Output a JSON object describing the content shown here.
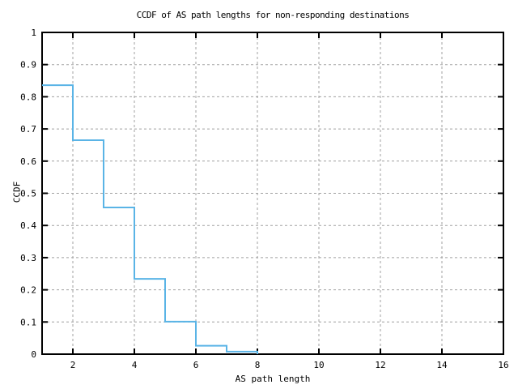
{
  "chart_data": {
    "type": "line",
    "subtype": "step-after-ccdf",
    "title": "CCDF of AS path lengths for non-responding destinations",
    "xlabel": "AS path length",
    "ylabel": "CCDF",
    "xlim": [
      1,
      16
    ],
    "ylim": [
      0,
      1
    ],
    "grid": "dashed-gray-at-ticks",
    "legend": "none",
    "xticks": [
      {
        "value": 2,
        "label": "2"
      },
      {
        "value": 4,
        "label": "4"
      },
      {
        "value": 6,
        "label": "6"
      },
      {
        "value": 8,
        "label": "8"
      },
      {
        "value": 10,
        "label": "10"
      },
      {
        "value": 12,
        "label": "12"
      },
      {
        "value": 14,
        "label": "14"
      },
      {
        "value": 16,
        "label": "16"
      }
    ],
    "yticks": [
      {
        "value": 0,
        "label": "0"
      },
      {
        "value": 0.1,
        "label": "0.1"
      },
      {
        "value": 0.2,
        "label": "0.2"
      },
      {
        "value": 0.3,
        "label": "0.3"
      },
      {
        "value": 0.4,
        "label": "0.4"
      },
      {
        "value": 0.5,
        "label": "0.5"
      },
      {
        "value": 0.6,
        "label": "0.6"
      },
      {
        "value": 0.7,
        "label": "0.7"
      },
      {
        "value": 0.8,
        "label": "0.8"
      },
      {
        "value": 0.9,
        "label": "0.9"
      },
      {
        "value": 1,
        "label": "1"
      }
    ],
    "points_note": "CCDF value holds from x to x+1 (step-after); series starts at left axis x=1 and ends at x=8",
    "points": [
      {
        "x": 1,
        "y": 0.836
      },
      {
        "x": 2,
        "y": 0.665
      },
      {
        "x": 3,
        "y": 0.456
      },
      {
        "x": 4,
        "y": 0.234
      },
      {
        "x": 5,
        "y": 0.101
      },
      {
        "x": 6,
        "y": 0.026
      },
      {
        "x": 7,
        "y": 0.008
      },
      {
        "x": 8,
        "y": 0
      }
    ],
    "colors": {
      "line": "#5ab4e6",
      "grid": "#a0a0a0",
      "axis": "#000000",
      "background": "#ffffff"
    }
  }
}
